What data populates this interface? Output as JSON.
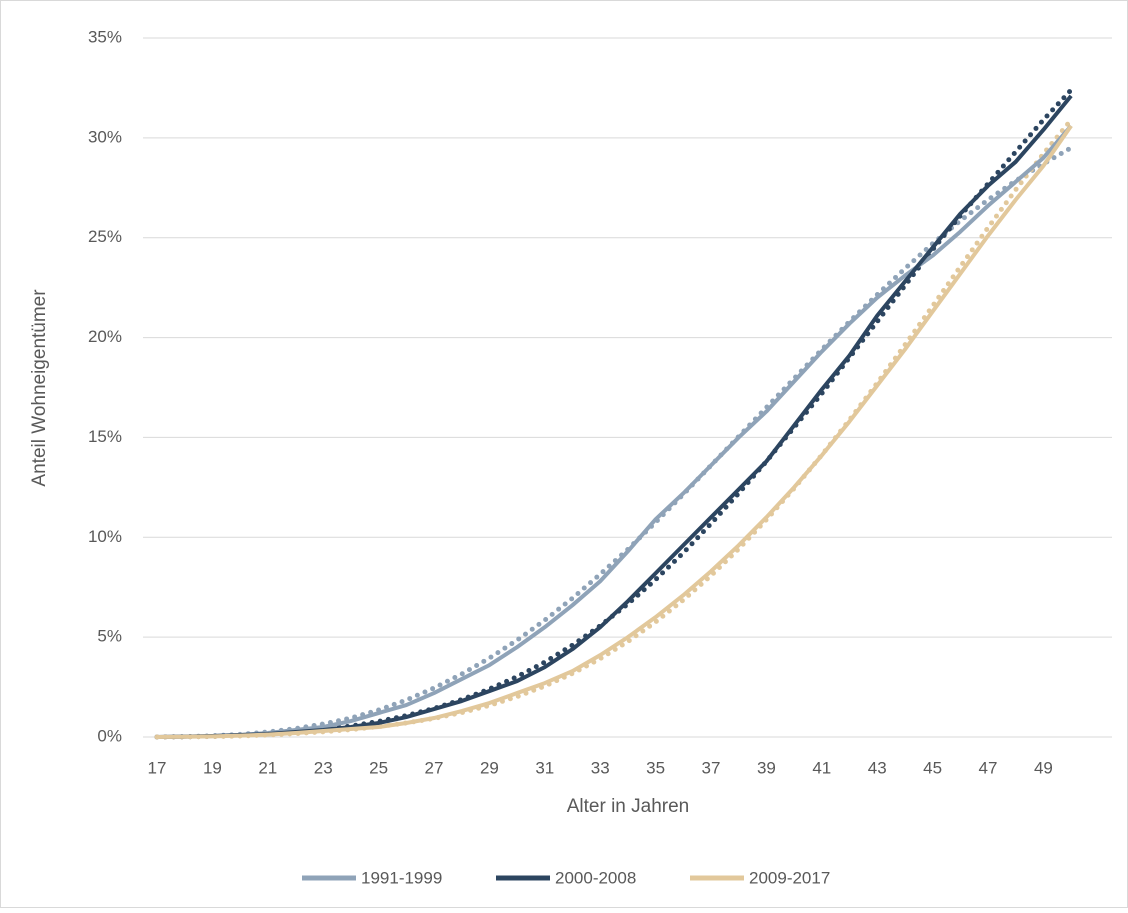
{
  "chart_data": {
    "type": "line",
    "x_label": "Alter in Jahren",
    "y_label": "Anteil Wohneigentümer",
    "categories": [
      17,
      null,
      19,
      null,
      21,
      null,
      23,
      null,
      25,
      null,
      27,
      null,
      29,
      null,
      31,
      null,
      33,
      null,
      35,
      null,
      37,
      null,
      39,
      null,
      41,
      null,
      43,
      null,
      45,
      null,
      47,
      null,
      49,
      null
    ],
    "series": [
      {
        "name": "1991-1999",
        "color": "#8FA3B8",
        "values": [
          0,
          0.02,
          0.05,
          0.1,
          0.2,
          0.35,
          0.5,
          0.8,
          1.2,
          1.6,
          2.2,
          2.9,
          3.6,
          4.5,
          5.5,
          6.6,
          7.8,
          9.3,
          10.9,
          12.2,
          13.6,
          15.0,
          16.3,
          17.8,
          19.3,
          20.7,
          22.0,
          23.1,
          24.1,
          25.3,
          26.6,
          27.8,
          29.0,
          30.6
        ],
        "trend": [
          0,
          0.02,
          0.06,
          0.13,
          0.25,
          0.42,
          0.65,
          0.95,
          1.35,
          1.85,
          2.45,
          3.15,
          3.95,
          4.85,
          5.85,
          6.95,
          8.15,
          9.4,
          10.75,
          12.15,
          13.6,
          15.05,
          16.5,
          17.95,
          19.4,
          20.8,
          22.15,
          23.45,
          24.7,
          25.85,
          26.9,
          27.85,
          28.7,
          29.5
        ]
      },
      {
        "name": "2000-2008",
        "color": "#2C4560",
        "values": [
          0,
          0.02,
          0.05,
          0.1,
          0.15,
          0.25,
          0.35,
          0.5,
          0.7,
          1.0,
          1.4,
          1.8,
          2.3,
          2.8,
          3.5,
          4.4,
          5.5,
          6.8,
          8.2,
          9.6,
          11.0,
          12.4,
          13.8,
          15.6,
          17.4,
          19.1,
          21.1,
          22.8,
          24.5,
          26.2,
          27.6,
          28.8,
          30.4,
          32.1
        ],
        "trend": [
          0,
          0.01,
          0.03,
          0.07,
          0.14,
          0.24,
          0.37,
          0.55,
          0.78,
          1.07,
          1.43,
          1.87,
          2.4,
          3.02,
          3.75,
          4.6,
          5.57,
          6.66,
          7.88,
          9.22,
          10.68,
          12.2,
          13.8,
          15.5,
          17.2,
          19.0,
          20.8,
          22.6,
          24.4,
          26.1,
          27.7,
          29.3,
          30.9,
          32.4
        ]
      },
      {
        "name": "2009-2017",
        "color": "#E2C89B",
        "values": [
          0,
          0.01,
          0.03,
          0.07,
          0.12,
          0.2,
          0.3,
          0.4,
          0.5,
          0.7,
          0.95,
          1.3,
          1.7,
          2.2,
          2.7,
          3.3,
          4.1,
          5.0,
          6.0,
          7.1,
          8.3,
          9.6,
          11.0,
          12.5,
          14.1,
          15.8,
          17.6,
          19.4,
          21.3,
          23.2,
          25.1,
          26.9,
          28.6,
          30.6
        ],
        "trend": [
          0,
          0.01,
          0.02,
          0.05,
          0.1,
          0.17,
          0.26,
          0.37,
          0.52,
          0.7,
          0.93,
          1.22,
          1.58,
          2.02,
          2.55,
          3.18,
          3.92,
          4.78,
          5.76,
          6.86,
          8.08,
          9.42,
          10.88,
          12.45,
          14.12,
          15.88,
          17.72,
          19.63,
          21.58,
          23.55,
          25.5,
          27.4,
          29.2,
          30.9
        ]
      }
    ],
    "ylim": [
      0,
      35
    ],
    "yticks": [
      {
        "value": 0,
        "label": "0%"
      },
      {
        "value": 5,
        "label": "5%"
      },
      {
        "value": 10,
        "label": "10%"
      },
      {
        "value": 15,
        "label": "15%"
      },
      {
        "value": 20,
        "label": "20%"
      },
      {
        "value": 25,
        "label": "25%"
      },
      {
        "value": 30,
        "label": "30%"
      },
      {
        "value": 35,
        "label": "35%"
      }
    ],
    "grid": true,
    "legend": "bottom"
  }
}
